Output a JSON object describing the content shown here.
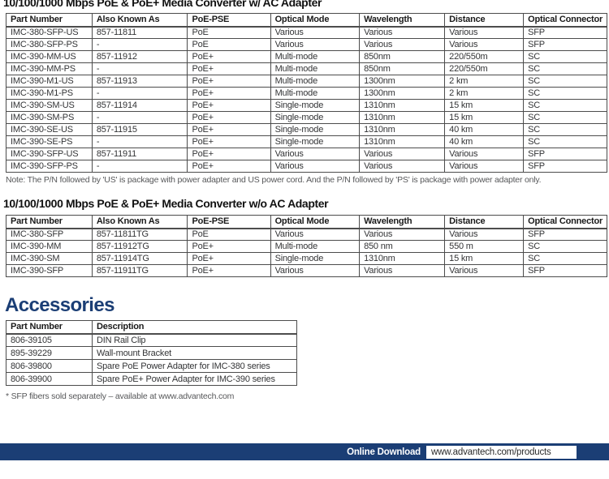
{
  "colors": {
    "navy": "#1b3e75",
    "table_border": "#4c4c4c",
    "body_text": "#333436",
    "muted_text": "#57585a"
  },
  "section_with_adapter": {
    "title": "10/100/1000 Mbps PoE & PoE+ Media Converter w/ AC Adapter",
    "table": {
      "headers": [
        "Part Number",
        "Also Known As",
        "PoE-PSE",
        "Optical Mode",
        "Wavelength",
        "Distance",
        "Optical Connector"
      ],
      "rows": [
        [
          "IMC-380-SFP-US",
          "857-11811",
          "PoE",
          "Various",
          "Various",
          "Various",
          "SFP"
        ],
        [
          "IMC-380-SFP-PS",
          "-",
          "PoE",
          "Various",
          "Various",
          "Various",
          "SFP"
        ],
        [
          "IMC-390-MM-US",
          "857-11912",
          "PoE+",
          "Multi-mode",
          "850nm",
          "220/550m",
          "SC"
        ],
        [
          "IMC-390-MM-PS",
          "-",
          "PoE+",
          "Multi-mode",
          "850nm",
          "220/550m",
          "SC"
        ],
        [
          "IMC-390-M1-US",
          "857-11913",
          "PoE+",
          "Multi-mode",
          "1300nm",
          "2 km",
          "SC"
        ],
        [
          "IMC-390-M1-PS",
          "-",
          "PoE+",
          "Multi-mode",
          "1300nm",
          "2 km",
          "SC"
        ],
        [
          "IMC-390-SM-US",
          "857-11914",
          "PoE+",
          "Single-mode",
          "1310nm",
          "15 km",
          "SC"
        ],
        [
          "IMC-390-SM-PS",
          "-",
          "PoE+",
          "Single-mode",
          "1310nm",
          "15 km",
          "SC"
        ],
        [
          "IMC-390-SE-US",
          "857-11915",
          "PoE+",
          "Single-mode",
          "1310nm",
          "40 km",
          "SC"
        ],
        [
          "IMC-390-SE-PS",
          "-",
          "PoE+",
          "Single-mode",
          "1310nm",
          "40 km",
          "SC"
        ],
        [
          "IMC-390-SFP-US",
          "857-11911",
          "PoE+",
          "Various",
          "Various",
          "Various",
          "SFP"
        ],
        [
          "IMC-390-SFP-PS",
          "-",
          "PoE+",
          "Various",
          "Various",
          "Various",
          "SFP"
        ]
      ]
    },
    "note": "Note: The P/N followed by 'US' is package with power adapter and US power cord. And the P/N followed by 'PS' is package with  power adapter only."
  },
  "section_without_adapter": {
    "title": "10/100/1000 Mbps PoE & PoE+ Media Converter w/o AC Adapter",
    "table": {
      "headers": [
        "Part Number",
        "Also Known As",
        "PoE-PSE",
        "Optical Mode",
        "Wavelength",
        "Distance",
        "Optical Connector"
      ],
      "rows": [
        [
          "IMC-380-SFP",
          "857-11811TG",
          "PoE",
          "Various",
          "Various",
          "Various",
          "SFP"
        ],
        [
          "IMC-390-MM",
          "857-11912TG",
          "PoE+",
          "Multi-mode",
          "850 nm",
          "550 m",
          "SC"
        ],
        [
          "IMC-390-SM",
          "857-11914TG",
          "PoE+",
          "Single-mode",
          "1310nm",
          "15 km",
          "SC"
        ],
        [
          "IMC-390-SFP",
          "857-11911TG",
          "PoE+",
          "Various",
          "Various",
          "Various",
          "SFP"
        ]
      ]
    }
  },
  "accessories": {
    "title": "Accessories",
    "table": {
      "headers": [
        "Part Number",
        "Description"
      ],
      "rows": [
        [
          "806-39105",
          "DIN Rail Clip"
        ],
        [
          "895-39229",
          "Wall-mount Bracket"
        ],
        [
          "806-39800",
          "Spare PoE Power Adapter for IMC-380 series"
        ],
        [
          "806-39900",
          "Spare PoE+ Power Adapter for IMC-390 series"
        ]
      ]
    }
  },
  "footnote": "* SFP fibers sold separately – available at www.advantech.com",
  "footer": {
    "label": "Online Download",
    "url": "www.advantech.com/products"
  }
}
